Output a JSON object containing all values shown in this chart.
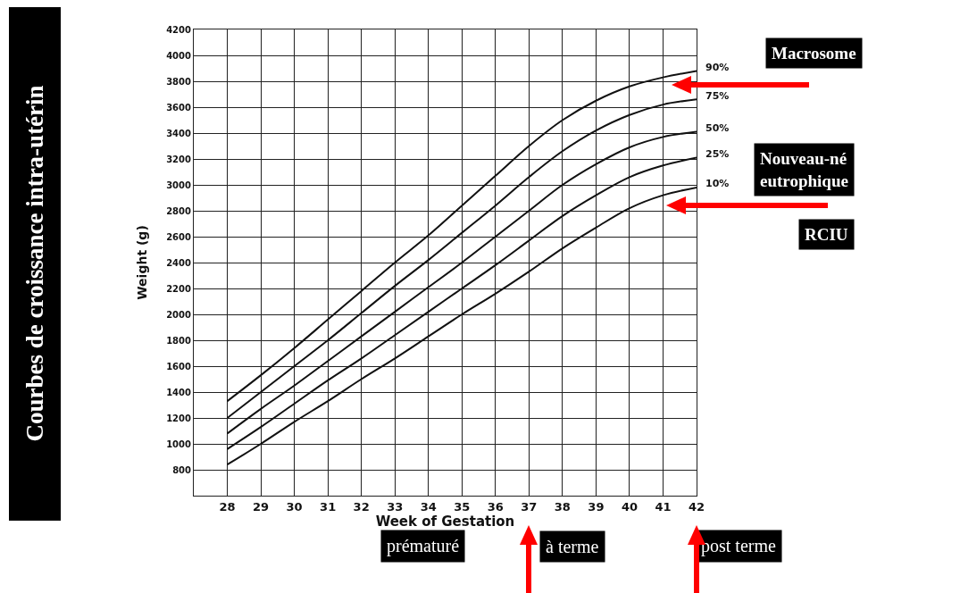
{
  "chart_data": {
    "type": "line",
    "title": "Courbes de croissance intra-utérin",
    "xlabel": "Week of Gestation",
    "ylabel": "Weight (g)",
    "x": [
      28,
      29,
      30,
      31,
      32,
      33,
      34,
      35,
      36,
      37,
      38,
      39,
      40,
      41,
      42
    ],
    "series": [
      {
        "name": "90%",
        "color": "#111111",
        "values": [
          1330,
          1530,
          1740,
          1960,
          2180,
          2400,
          2610,
          2840,
          3070,
          3300,
          3500,
          3650,
          3760,
          3830,
          3880
        ]
      },
      {
        "name": "75%",
        "color": "#111111",
        "values": [
          1200,
          1400,
          1600,
          1800,
          2010,
          2220,
          2420,
          2630,
          2840,
          3060,
          3260,
          3420,
          3540,
          3620,
          3660
        ]
      },
      {
        "name": "50%",
        "color": "#111111",
        "values": [
          1080,
          1270,
          1450,
          1640,
          1830,
          2020,
          2210,
          2400,
          2600,
          2800,
          3000,
          3160,
          3290,
          3370,
          3410
        ]
      },
      {
        "name": "25%",
        "color": "#111111",
        "values": [
          960,
          1130,
          1310,
          1490,
          1660,
          1840,
          2020,
          2200,
          2380,
          2570,
          2760,
          2920,
          3060,
          3150,
          3210
        ]
      },
      {
        "name": "10%",
        "color": "#111111",
        "values": [
          840,
          1000,
          1170,
          1330,
          1500,
          1660,
          1830,
          2000,
          2160,
          2330,
          2510,
          2670,
          2820,
          2920,
          2980
        ]
      }
    ],
    "xlim": [
      27,
      42
    ],
    "xticks": [
      28,
      29,
      30,
      31,
      32,
      33,
      34,
      35,
      36,
      37,
      38,
      39,
      40,
      41,
      42
    ],
    "ylim": [
      600,
      4200
    ],
    "yticks": [
      800,
      1000,
      1200,
      1400,
      1600,
      1800,
      2000,
      2200,
      2400,
      2600,
      2800,
      3000,
      3200,
      3400,
      3600,
      3800,
      4000,
      4200
    ],
    "grid": true,
    "legend": false,
    "marker": "none",
    "line_style": "solid",
    "annotations": [
      "Macrosome",
      "Nouveau-né\neutrophique",
      "RCIU",
      "prématuré",
      "à terme",
      "post terme"
    ]
  }
}
